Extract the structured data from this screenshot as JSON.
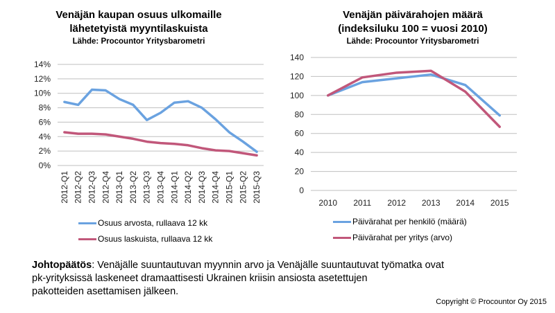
{
  "colors": {
    "blue": "#6aa2e0",
    "red": "#c1577a",
    "grid": "#bfbfbf"
  },
  "chart_data": [
    {
      "type": "line",
      "title": "Venäjän kaupan osuus ulkomaille lähetetyistä myyntilaskuista",
      "title_line1": "Venäjän kaupan osuus ulkomaille",
      "title_line2": "lähetetyistä myyntilaskuista",
      "subtitle": "Lähde: Procountor Yritysbarometri",
      "xlabel": "",
      "ylabel": "",
      "ylim": [
        0,
        14
      ],
      "y_ticks": [
        "0%",
        "2%",
        "4%",
        "6%",
        "8%",
        "10%",
        "12%",
        "14%"
      ],
      "grid": true,
      "legend": "bottom",
      "categories": [
        "2012-Q1",
        "2012-Q2",
        "2012-Q3",
        "2012-Q4",
        "2013-Q1",
        "2013-Q2",
        "2013-Q3",
        "2013-Q4",
        "2014-Q1",
        "2014-Q2",
        "2014-Q3",
        "2014-Q4",
        "2015-Q1",
        "2015-Q2",
        "2015-Q3"
      ],
      "series": [
        {
          "name": "Osuus arvosta, rullaava 12 kk",
          "color": "#6aa2e0",
          "values": [
            8.8,
            8.4,
            10.5,
            10.4,
            9.2,
            8.4,
            6.3,
            7.3,
            8.7,
            8.9,
            8.0,
            6.4,
            4.6,
            3.3,
            1.9
          ]
        },
        {
          "name": "Osuus laskuista, rullaava 12 kk",
          "color": "#c1577a",
          "values": [
            4.6,
            4.4,
            4.4,
            4.3,
            4.0,
            3.7,
            3.3,
            3.1,
            3.0,
            2.8,
            2.4,
            2.1,
            2.0,
            1.7,
            1.4
          ]
        }
      ]
    },
    {
      "type": "line",
      "title": "Venäjän päivärahojen määrä (indeksiluku 100 = vuosi 2010)",
      "title_line1": "Venäjän päivärahojen määrä",
      "title_line2": "(indeksiluku 100 = vuosi 2010)",
      "subtitle": "Lähde: Procountor Yritysbarometri",
      "xlabel": "",
      "ylabel": "",
      "ylim": [
        0,
        140
      ],
      "y_ticks": [
        "0",
        "20",
        "40",
        "60",
        "80",
        "100",
        "120",
        "140"
      ],
      "grid": true,
      "legend": "bottom",
      "categories": [
        "2010",
        "2011",
        "2012",
        "2013",
        "2014",
        "2015"
      ],
      "series": [
        {
          "name": "Päivärahat per henkilö (määrä)",
          "color": "#6aa2e0",
          "values": [
            100,
            114,
            118,
            122,
            111,
            79
          ]
        },
        {
          "name": "Päivärahat per yritys (arvo)",
          "color": "#c1577a",
          "values": [
            100,
            119,
            124,
            126,
            104,
            67
          ]
        }
      ]
    }
  ],
  "conclusion": {
    "label": "Johtopäätös",
    "line1": ": Venäjälle suuntautuvan myynnin arvo ja Venäjälle suuntautuvat työmatka ovat",
    "line2": "pk-yrityksissä laskeneet dramaattisesti Ukrainen kriisin ansiosta asetettujen",
    "line3": "pakotteiden asettamisen jälkeen."
  },
  "copyright": "Copyright © Procountor Oy 2015"
}
